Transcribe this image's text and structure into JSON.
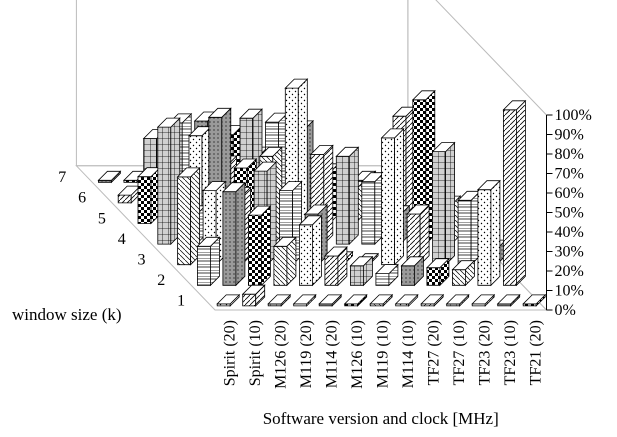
{
  "chart_data": {
    "type": "bar",
    "subtype": "3d-grouped",
    "title": "",
    "xlabel": "Software version and clock [MHz]",
    "zlabel": "window size (k)",
    "ylabel": "",
    "categories": [
      "Spirit (20)",
      "Spirit (10)",
      "M126 (20)",
      "M119 (20)",
      "M114 (20)",
      "M126 (10)",
      "M119 (10)",
      "M114 (10)",
      "TF27 (20)",
      "TF27 (10)",
      "TF23 (20)",
      "TF23 (10)",
      "TF21 (20)"
    ],
    "yticks": [
      "0%",
      "10%",
      "20%",
      "30%",
      "40%",
      "50%",
      "60%",
      "70%",
      "80%",
      "90%",
      "100%"
    ],
    "ylim": [
      0,
      100
    ],
    "series": [
      {
        "name": "1",
        "values": [
          1,
          6,
          1,
          1,
          1,
          1,
          1,
          1,
          1,
          1,
          1,
          1,
          1
        ]
      },
      {
        "name": "2",
        "values": [
          20,
          48,
          36,
          20,
          31,
          15,
          10,
          6,
          10,
          9,
          8,
          49,
          90
        ]
      },
      {
        "name": "3",
        "values": [
          45,
          38,
          35,
          48,
          38,
          26,
          2,
          1,
          65,
          26,
          58,
          33,
          8
        ]
      },
      {
        "name": "4",
        "values": [
          60,
          15,
          65,
          39,
          45,
          80,
          46,
          45,
          32,
          15,
          74,
          20,
          10
        ]
      },
      {
        "name": "5",
        "values": [
          24,
          8,
          45,
          30,
          54,
          52,
          48,
          26,
          17,
          8,
          55,
          3,
          4
        ]
      },
      {
        "name": "6",
        "values": [
          4,
          33,
          41,
          42,
          35,
          24,
          29,
          18,
          12,
          2,
          3,
          2,
          1
        ]
      },
      {
        "name": "7",
        "values": [
          1,
          1,
          2,
          2,
          1,
          2,
          3,
          1,
          1,
          1,
          1,
          1,
          1
        ]
      }
    ],
    "grid": false,
    "legend": "none"
  }
}
